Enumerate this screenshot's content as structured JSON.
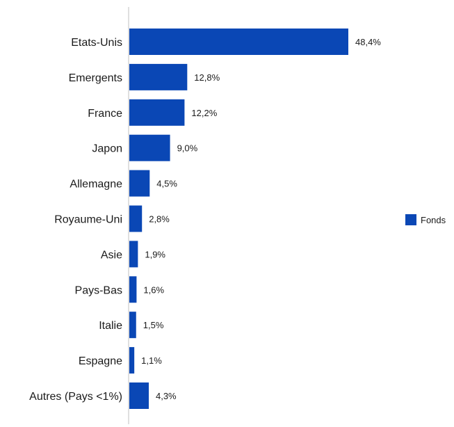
{
  "chart_data": {
    "type": "bar",
    "orientation": "horizontal",
    "categories": [
      "Etats-Unis",
      "Emergents",
      "France",
      "Japon",
      "Allemagne",
      "Royaume-Uni",
      "Asie",
      "Pays-Bas",
      "Italie",
      "Espagne",
      "Autres (Pays <1%)"
    ],
    "series": [
      {
        "name": "Fonds",
        "values": [
          48.4,
          12.8,
          12.2,
          9.0,
          4.5,
          2.8,
          1.9,
          1.6,
          1.5,
          1.1,
          4.3
        ],
        "labels": [
          "48,4%",
          "12,8%",
          "12,2%",
          "9,0%",
          "4,5%",
          "2,8%",
          "1,9%",
          "1,6%",
          "1,5%",
          "1,1%",
          "4,3%"
        ],
        "color": "#0a47b5"
      }
    ],
    "legend_position": "right",
    "grid": false,
    "xlim": [
      0,
      55
    ]
  }
}
